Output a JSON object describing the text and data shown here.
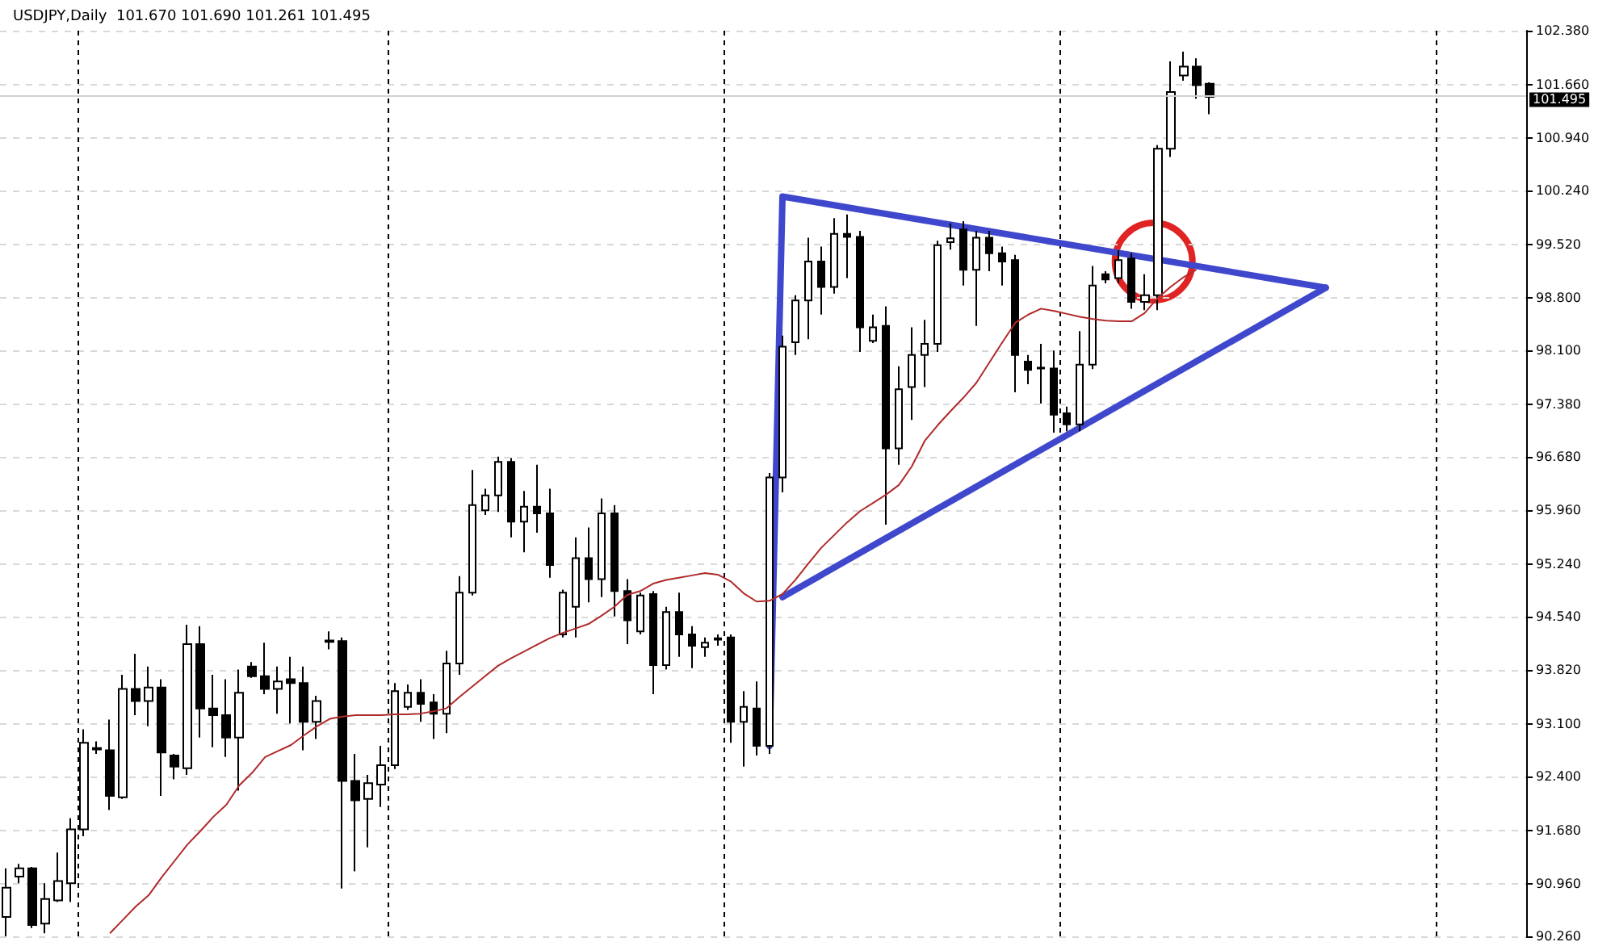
{
  "chart_data": {
    "type": "candlestick",
    "title": "USDJPY,Daily  101.670 101.690 101.261 101.495",
    "categories": [
      null,
      null,
      null,
      null,
      null,
      null,
      null,
      null,
      null,
      null,
      null,
      null,
      null,
      null,
      null,
      null,
      null,
      null,
      null,
      null,
      null,
      null,
      null,
      null,
      null,
      null,
      null,
      null,
      null,
      null,
      null,
      null,
      null,
      null,
      null,
      null,
      null,
      null,
      null,
      null,
      null,
      null,
      null,
      null,
      null,
      null,
      null,
      null,
      null,
      null,
      null,
      null,
      null,
      null,
      null,
      null,
      null,
      null,
      null,
      null,
      null,
      null,
      null,
      null,
      null,
      null,
      null,
      null,
      null,
      null,
      null,
      null,
      null,
      null,
      null,
      null,
      null,
      null,
      null,
      null,
      null,
      null,
      null,
      null,
      null,
      null,
      null,
      null,
      null,
      null,
      null,
      null,
      null,
      null,
      null,
      null,
      null,
      null,
      null,
      null,
      null,
      null,
      null,
      null,
      null,
      null,
      null,
      null,
      null,
      null,
      null,
      null,
      null,
      null,
      null,
      null,
      null,
      null
    ],
    "ylim": [
      90.26,
      102.38
    ],
    "yticks": [
      {
        "value": 102.38,
        "label": "102.380"
      },
      {
        "value": 101.66,
        "label": "101.660"
      },
      {
        "value": 100.94,
        "label": "100.940"
      },
      {
        "value": 100.24,
        "label": "100.240"
      },
      {
        "value": 99.52,
        "label": "99.520"
      },
      {
        "value": 98.8,
        "label": "98.800"
      },
      {
        "value": 98.1,
        "label": "98.100"
      },
      {
        "value": 97.38,
        "label": "97.380"
      },
      {
        "value": 96.68,
        "label": "96.680"
      },
      {
        "value": 95.96,
        "label": "95.960"
      },
      {
        "value": 95.24,
        "label": "95.240"
      },
      {
        "value": 94.54,
        "label": "94.540"
      },
      {
        "value": 93.82,
        "label": "93.820"
      },
      {
        "value": 93.1,
        "label": "93.100"
      },
      {
        "value": 92.4,
        "label": "92.400"
      },
      {
        "value": 91.68,
        "label": "91.680"
      },
      {
        "value": 90.96,
        "label": "90.960"
      },
      {
        "value": 90.26,
        "label": "90.260"
      }
    ],
    "tick_labels": "y",
    "grid": true,
    "ref_lines": [
      {
        "axis": "y",
        "value": 101.495,
        "label": "101.495"
      }
    ],
    "series": [
      {
        "color": "#000000",
        "ohlc": [
          [
            90.52,
            91.17,
            90.26,
            90.91
          ],
          [
            91.06,
            91.23,
            90.97,
            91.17
          ],
          [
            91.17,
            91.19,
            90.37,
            90.41
          ],
          [
            90.43,
            90.97,
            90.3,
            90.76
          ],
          [
            90.74,
            91.38,
            90.72,
            91.0
          ],
          [
            90.97,
            91.84,
            90.72,
            91.69
          ],
          [
            91.69,
            93.03,
            91.6,
            92.85
          ],
          [
            92.78,
            92.87,
            92.7,
            92.76
          ],
          [
            92.75,
            93.16,
            91.95,
            92.14
          ],
          [
            92.12,
            93.76,
            92.1,
            93.57
          ],
          [
            93.57,
            94.04,
            93.22,
            93.41
          ],
          [
            93.41,
            93.87,
            93.07,
            93.59
          ],
          [
            93.59,
            93.7,
            92.14,
            92.72
          ],
          [
            92.68,
            92.7,
            92.36,
            92.53
          ],
          [
            92.51,
            94.43,
            92.42,
            94.17
          ],
          [
            94.17,
            94.41,
            92.92,
            93.31
          ],
          [
            93.31,
            93.76,
            92.79,
            93.22
          ],
          [
            93.22,
            93.7,
            92.66,
            92.92
          ],
          [
            92.92,
            93.83,
            92.21,
            93.52
          ],
          [
            93.87,
            93.93,
            93.72,
            93.74
          ],
          [
            93.74,
            94.19,
            93.5,
            93.57
          ],
          [
            93.57,
            93.87,
            93.24,
            93.67
          ],
          [
            93.7,
            94.0,
            93.11,
            93.65
          ],
          [
            93.65,
            93.87,
            92.75,
            93.13
          ],
          [
            93.13,
            93.48,
            92.9,
            93.41
          ],
          [
            94.22,
            94.34,
            94.1,
            94.2
          ],
          [
            94.21,
            94.26,
            90.9,
            92.34
          ],
          [
            92.34,
            92.7,
            91.13,
            92.08
          ],
          [
            92.1,
            92.42,
            91.45,
            92.31
          ],
          [
            92.29,
            92.81,
            91.99,
            92.55
          ],
          [
            92.55,
            93.65,
            92.5,
            93.54
          ],
          [
            93.33,
            93.63,
            93.29,
            93.52
          ],
          [
            93.52,
            93.7,
            93.13,
            93.37
          ],
          [
            93.39,
            93.5,
            92.9,
            93.24
          ],
          [
            93.24,
            94.08,
            92.98,
            93.91
          ],
          [
            93.91,
            95.08,
            93.76,
            94.86
          ],
          [
            94.86,
            96.5,
            94.82,
            96.03
          ],
          [
            95.96,
            96.25,
            95.9,
            96.16
          ],
          [
            96.16,
            96.68,
            95.94,
            96.61
          ],
          [
            96.61,
            96.66,
            95.6,
            95.81
          ],
          [
            95.81,
            96.22,
            95.4,
            96.01
          ],
          [
            96.01,
            96.57,
            95.66,
            95.92
          ],
          [
            95.92,
            96.25,
            95.06,
            95.23
          ],
          [
            94.3,
            94.9,
            94.26,
            94.86
          ],
          [
            94.67,
            95.6,
            94.26,
            95.32
          ],
          [
            95.32,
            95.73,
            94.73,
            95.04
          ],
          [
            95.04,
            96.12,
            94.8,
            95.92
          ],
          [
            95.92,
            96.03,
            94.54,
            94.88
          ],
          [
            94.88,
            95.04,
            94.17,
            94.49
          ],
          [
            94.34,
            94.86,
            94.3,
            94.82
          ],
          [
            94.84,
            94.88,
            93.5,
            93.89
          ],
          [
            93.89,
            94.67,
            93.83,
            94.6
          ],
          [
            94.6,
            94.86,
            94.0,
            94.3
          ],
          [
            94.3,
            94.41,
            93.85,
            94.15
          ],
          [
            94.13,
            94.26,
            94.0,
            94.19
          ],
          [
            94.25,
            94.3,
            94.15,
            94.23
          ],
          [
            94.26,
            94.3,
            92.85,
            93.13
          ],
          [
            93.13,
            93.54,
            92.53,
            93.33
          ],
          [
            93.31,
            93.67,
            92.68,
            92.81
          ],
          [
            92.81,
            96.46,
            92.7,
            96.4
          ],
          [
            96.4,
            98.3,
            96.2,
            98.15
          ],
          [
            98.21,
            98.84,
            98.04,
            98.77
          ],
          [
            98.77,
            99.61,
            98.25,
            99.29
          ],
          [
            99.29,
            99.49,
            98.58,
            98.95
          ],
          [
            98.95,
            99.87,
            98.86,
            99.66
          ],
          [
            99.66,
            99.92,
            99.07,
            99.62
          ],
          [
            99.62,
            99.7,
            98.08,
            98.41
          ],
          [
            98.23,
            98.58,
            98.2,
            98.41
          ],
          [
            98.43,
            98.69,
            95.77,
            96.79
          ],
          [
            96.79,
            97.89,
            96.57,
            97.58
          ],
          [
            97.61,
            98.41,
            97.17,
            98.04
          ],
          [
            98.04,
            98.51,
            97.61,
            98.19
          ],
          [
            98.19,
            99.57,
            98.08,
            99.51
          ],
          [
            99.55,
            99.8,
            99.45,
            99.6
          ],
          [
            99.72,
            99.83,
            98.97,
            99.18
          ],
          [
            99.18,
            99.7,
            98.43,
            99.61
          ],
          [
            99.61,
            99.7,
            99.16,
            99.4
          ],
          [
            99.4,
            99.49,
            98.97,
            99.29
          ],
          [
            99.31,
            99.38,
            97.54,
            98.04
          ],
          [
            97.95,
            98.04,
            97.65,
            97.84
          ],
          [
            97.87,
            98.19,
            97.39,
            97.86
          ],
          [
            97.86,
            98.1,
            97.0,
            97.24
          ],
          [
            97.26,
            97.35,
            97.02,
            97.11
          ],
          [
            97.11,
            98.36,
            97.02,
            97.91
          ],
          [
            97.91,
            99.23,
            97.85,
            98.97
          ],
          [
            99.12,
            99.16,
            99.0,
            99.05
          ],
          [
            99.07,
            99.44,
            99.0,
            99.31
          ],
          [
            99.33,
            99.4,
            98.66,
            98.75
          ],
          [
            98.75,
            99.12,
            98.64,
            98.84
          ],
          [
            98.84,
            100.85,
            98.64,
            100.8
          ],
          [
            100.8,
            101.97,
            100.69,
            101.56
          ],
          [
            101.78,
            102.1,
            101.71,
            101.9
          ],
          [
            101.9,
            102.01,
            101.47,
            101.65
          ],
          [
            101.67,
            101.69,
            101.261,
            101.495
          ],
          null,
          null,
          null,
          null,
          null,
          null,
          null,
          null,
          null,
          null,
          null,
          null,
          null,
          null,
          null,
          null,
          null,
          null,
          null,
          null,
          null,
          null,
          null,
          null
        ]
      },
      {
        "type": "line",
        "color": "#b02a2a",
        "values": [
          null,
          null,
          null,
          null,
          null,
          null,
          null,
          null,
          90.3,
          90.48,
          90.66,
          90.81,
          91.05,
          91.27,
          91.49,
          91.67,
          91.86,
          92.02,
          92.28,
          92.45,
          92.66,
          92.74,
          92.82,
          92.95,
          93.07,
          93.17,
          93.2,
          93.22,
          93.22,
          93.22,
          93.23,
          93.23,
          93.24,
          93.27,
          93.31,
          93.46,
          93.6,
          93.74,
          93.88,
          93.98,
          94.07,
          94.16,
          94.25,
          94.32,
          94.38,
          94.44,
          94.55,
          94.67,
          94.83,
          94.88,
          94.98,
          95.03,
          95.06,
          95.09,
          95.12,
          95.1,
          95.01,
          94.85,
          94.74,
          94.75,
          94.84,
          95.03,
          95.25,
          95.46,
          95.63,
          95.8,
          95.95,
          96.06,
          96.17,
          96.3,
          96.55,
          96.89,
          97.1,
          97.29,
          97.47,
          97.67,
          97.94,
          98.21,
          98.47,
          98.58,
          98.66,
          98.63,
          98.59,
          98.55,
          98.52,
          98.5,
          98.49,
          98.49,
          98.6,
          98.8,
          98.95,
          99.08,
          99.18,
          null,
          null,
          null,
          null,
          null,
          null,
          null,
          null,
          null,
          null,
          null,
          null,
          null,
          null,
          null,
          null,
          null,
          null,
          null,
          null,
          null,
          null,
          null,
          null,
          null
        ]
      },
      {
        "type": "line",
        "color": "#3f48cc",
        "values": [
          null,
          null,
          null,
          null,
          null,
          null,
          null,
          null,
          null,
          null,
          null,
          null,
          null,
          null,
          null,
          null,
          null,
          null,
          null,
          null,
          null,
          null,
          null,
          null,
          null,
          null,
          null,
          null,
          null,
          null,
          null,
          null,
          null,
          null,
          null,
          null,
          null,
          null,
          null,
          null,
          null,
          null,
          null,
          null,
          null,
          null,
          null,
          null,
          null,
          null,
          null,
          null,
          null,
          null,
          null,
          null,
          null,
          null,
          null,
          92.81,
          100.16,
          null,
          null,
          null,
          null,
          null,
          null,
          null,
          null,
          null,
          null,
          null,
          null,
          null,
          null,
          null,
          null,
          null,
          null,
          null,
          null,
          null,
          null,
          null,
          null,
          null,
          null,
          null,
          null,
          null,
          null,
          null,
          null,
          null,
          null,
          null,
          null,
          null,
          null,
          null,
          null,
          null,
          98.94,
          null,
          null,
          null,
          null,
          null,
          null,
          null,
          null,
          null,
          null,
          null,
          null,
          null,
          null,
          null
        ]
      },
      {
        "type": "line",
        "color": "#3f48cc",
        "values": [
          null,
          null,
          null,
          null,
          null,
          null,
          null,
          null,
          null,
          null,
          null,
          null,
          null,
          null,
          null,
          null,
          null,
          null,
          null,
          null,
          null,
          null,
          null,
          null,
          null,
          null,
          null,
          null,
          null,
          null,
          null,
          null,
          null,
          null,
          null,
          null,
          null,
          null,
          null,
          null,
          null,
          null,
          null,
          null,
          null,
          null,
          null,
          null,
          null,
          null,
          null,
          null,
          null,
          null,
          null,
          null,
          null,
          null,
          null,
          null,
          94.8,
          null,
          null,
          null,
          null,
          null,
          null,
          null,
          null,
          null,
          null,
          null,
          null,
          null,
          null,
          null,
          null,
          null,
          null,
          null,
          null,
          null,
          null,
          null,
          null,
          null,
          null,
          null,
          null,
          null,
          null,
          null,
          null,
          null,
          null,
          null,
          null,
          null,
          null,
          null,
          null,
          null,
          98.94,
          null,
          null,
          null,
          null,
          null,
          null,
          null,
          null,
          null,
          null,
          null,
          null,
          null,
          null,
          null
        ]
      }
    ]
  }
}
